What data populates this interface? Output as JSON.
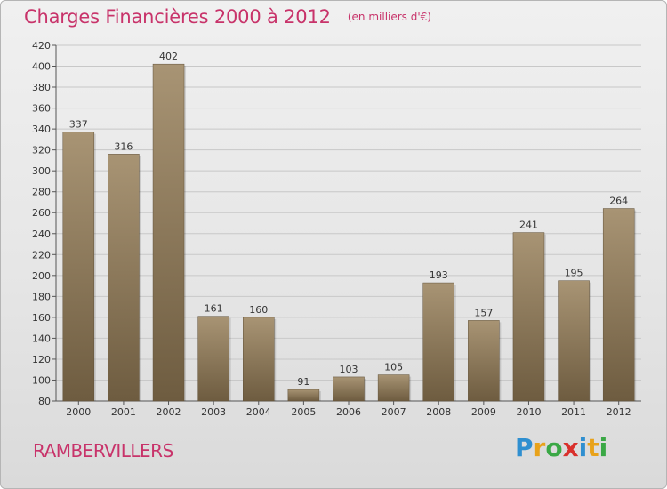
{
  "header": {
    "title": "Charges Financières 2000 à 2012",
    "subtitle": "(en milliers d'€)"
  },
  "place": "RAMBERVILLERS",
  "logo": {
    "letters": [
      {
        "ch": "P",
        "color": "#2f8fd0"
      },
      {
        "ch": "r",
        "color": "#e8a21a"
      },
      {
        "ch": "o",
        "color": "#3aa845"
      },
      {
        "ch": "x",
        "color": "#d9302c"
      },
      {
        "ch": "i",
        "color": "#2f8fd0"
      },
      {
        "ch": "t",
        "color": "#e8a21a"
      },
      {
        "ch": "i",
        "color": "#3aa845"
      }
    ]
  },
  "colors": {
    "bar_top": "#a89474",
    "bar_bottom": "#6e5c40",
    "grid": "#c8c8c8",
    "title": "#c8336a"
  },
  "chart_data": {
    "type": "bar",
    "categories": [
      "2000",
      "2001",
      "2002",
      "2003",
      "2004",
      "2005",
      "2006",
      "2007",
      "2008",
      "2009",
      "2010",
      "2011",
      "2012"
    ],
    "values": [
      337,
      316,
      402,
      161,
      160,
      91,
      103,
      105,
      193,
      157,
      241,
      195,
      264
    ],
    "title": "Charges Financières 2000 à 2012",
    "subtitle": "(en milliers d'€)",
    "ylim": [
      80,
      420
    ],
    "yticks": [
      80,
      100,
      120,
      140,
      160,
      180,
      200,
      220,
      240,
      260,
      280,
      300,
      320,
      340,
      360,
      380,
      400,
      420
    ],
    "grid": true
  }
}
